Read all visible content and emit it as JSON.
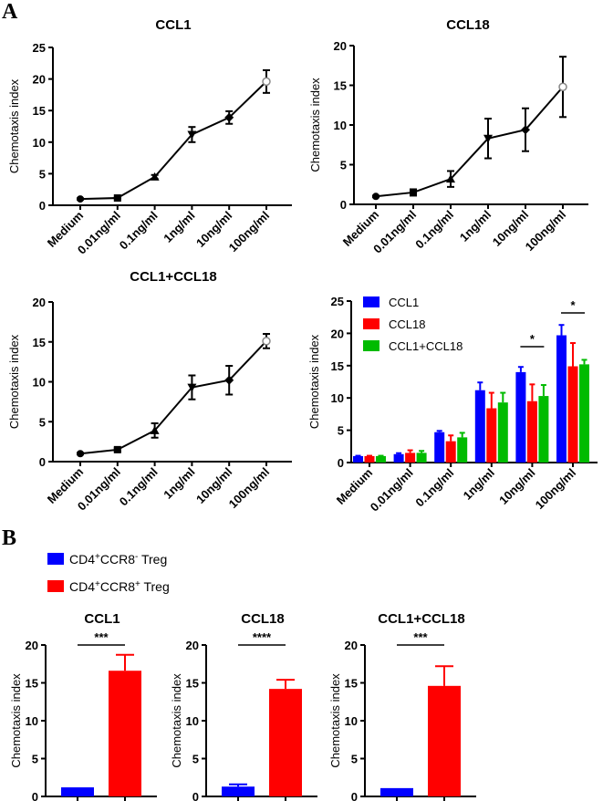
{
  "panel_labels": [
    "A",
    "B"
  ],
  "colors": {
    "CCL1": "#0000ff",
    "CCL18": "#ff0000",
    "CCL1+CCL18": "#00bb00",
    "CCR8neg": "#0000ff",
    "CCR8pos": "#ff0000"
  },
  "chart_data": [
    {
      "type": "line",
      "title": "CCL1",
      "ylabel": "Chemotaxis index",
      "ylim": [
        0,
        25
      ],
      "yticks": [
        0,
        5,
        10,
        15,
        20,
        25
      ],
      "categories": [
        "Medium",
        "0.01ng/ml",
        "0.1ng/ml",
        "1ng/ml",
        "10ng/ml",
        "100ng/ml"
      ],
      "values": [
        1.0,
        1.15,
        4.5,
        11.2,
        13.9,
        19.6
      ],
      "errors": [
        0.1,
        0.1,
        0.3,
        1.2,
        1.0,
        1.8
      ]
    },
    {
      "type": "line",
      "title": "CCL18",
      "ylabel": "Chemotaxis index",
      "ylim": [
        0,
        20
      ],
      "yticks": [
        0,
        5,
        10,
        15,
        20
      ],
      "categories": [
        "Medium",
        "0.01ng/ml",
        "0.1ng/ml",
        "1ng/ml",
        "10ng/ml",
        "100ng/ml"
      ],
      "values": [
        1.0,
        1.5,
        3.2,
        8.3,
        9.4,
        14.8
      ],
      "errors": [
        0.1,
        0.4,
        1.0,
        2.5,
        2.7,
        3.8
      ]
    },
    {
      "type": "line",
      "title": "CCL1+CCL18",
      "ylabel": "Chemotaxis index",
      "ylim": [
        0,
        20
      ],
      "yticks": [
        0,
        5,
        10,
        15,
        20
      ],
      "categories": [
        "Medium",
        "0.01ng/ml",
        "0.1ng/ml",
        "1ng/ml",
        "10ng/ml",
        "100ng/ml"
      ],
      "values": [
        1.0,
        1.5,
        3.9,
        9.3,
        10.2,
        15.1
      ],
      "errors": [
        0.1,
        0.2,
        0.9,
        1.5,
        1.8,
        0.9
      ]
    },
    {
      "type": "bar",
      "title": "",
      "ylabel": "Chemotaxis index",
      "ylim": [
        0,
        25
      ],
      "yticks": [
        0,
        5,
        10,
        15,
        20,
        25
      ],
      "legend": "top-left",
      "categories": [
        "Medium",
        "0.01ng/ml",
        "0.1ng/ml",
        "1ng/ml",
        "10ng/ml",
        "100ng/ml"
      ],
      "series": [
        {
          "name": "CCL1",
          "values": [
            1.0,
            1.3,
            4.7,
            11.2,
            14.0,
            19.7
          ],
          "errors": [
            0.05,
            0.15,
            0.2,
            1.2,
            0.8,
            1.6
          ]
        },
        {
          "name": "CCL18",
          "values": [
            1.0,
            1.5,
            3.3,
            8.4,
            9.5,
            14.9
          ],
          "errors": [
            0.05,
            0.4,
            0.9,
            2.4,
            2.6,
            3.6
          ]
        },
        {
          "name": "CCL1+CCL18",
          "values": [
            1.0,
            1.5,
            3.9,
            9.3,
            10.3,
            15.2
          ],
          "errors": [
            0.05,
            0.3,
            0.7,
            1.5,
            1.7,
            0.7
          ]
        }
      ],
      "annotations": [
        {
          "category": "10ng/ml",
          "text": "*"
        },
        {
          "category": "100ng/ml",
          "text": "*"
        }
      ]
    },
    {
      "type": "bar",
      "title": "CCL1",
      "ylabel": "Chemotaxis index",
      "ylim": [
        0,
        20
      ],
      "yticks": [
        0,
        5,
        10,
        15,
        20
      ],
      "series": [
        {
          "name": "CD4+CCR8- Treg",
          "value": 1.2,
          "error": 0
        },
        {
          "name": "CD4+CCR8+ Treg",
          "value": 16.6,
          "error": 2.1
        }
      ],
      "significance": "***"
    },
    {
      "type": "bar",
      "title": "CCL18",
      "ylabel": "Chemotaxis index",
      "ylim": [
        0,
        20
      ],
      "yticks": [
        0,
        5,
        10,
        15,
        20
      ],
      "series": [
        {
          "name": "CD4+CCR8- Treg",
          "value": 1.3,
          "error": 0.3
        },
        {
          "name": "CD4+CCR8+ Treg",
          "value": 14.2,
          "error": 1.2
        }
      ],
      "significance": "****"
    },
    {
      "type": "bar",
      "title": "CCL1+CCL18",
      "ylabel": "Chemotaxis index",
      "ylim": [
        0,
        20
      ],
      "yticks": [
        0,
        5,
        10,
        15,
        20
      ],
      "series": [
        {
          "name": "CD4+CCR8- Treg",
          "value": 1.1,
          "error": 0
        },
        {
          "name": "CD4+CCR8+ Treg",
          "value": 14.6,
          "error": 2.6
        }
      ],
      "significance": "***"
    }
  ],
  "legend_b": [
    {
      "base": "CD4",
      "sup1": "+",
      "mid": "CCR8",
      "sup2": "-",
      "tail": " Treg"
    },
    {
      "base": "CD4",
      "sup1": "+",
      "mid": "CCR8",
      "sup2": "+",
      "tail": " Treg"
    }
  ]
}
